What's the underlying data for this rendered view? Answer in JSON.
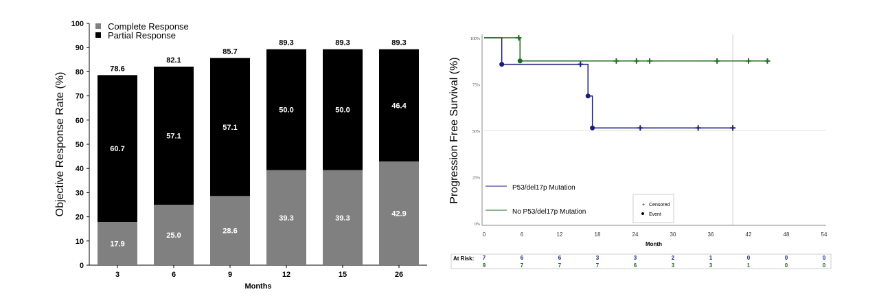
{
  "chart_data": [
    {
      "type": "bar",
      "stacked": true,
      "categories": [
        "3",
        "6",
        "9",
        "12",
        "15",
        "26"
      ],
      "series": [
        {
          "name": "Complete Response",
          "values": [
            17.9,
            25.0,
            28.6,
            39.3,
            39.3,
            42.9
          ],
          "color": "#808080"
        },
        {
          "name": "Partial Response",
          "values": [
            60.7,
            57.1,
            57.1,
            50.0,
            50.0,
            46.4
          ],
          "color": "#000000"
        }
      ],
      "totals": [
        78.6,
        82.1,
        85.7,
        89.3,
        89.3,
        89.3
      ],
      "xlabel": "Months",
      "ylabel": "Objective Response Rate (%)",
      "ylim": [
        0,
        100
      ],
      "yticks": [
        "0",
        "10",
        "20",
        "30",
        "40",
        "50",
        "60",
        "70",
        "80",
        "90",
        "100"
      ],
      "legend": "top-left"
    },
    {
      "type": "line",
      "subtype": "kaplan-meier",
      "xlabel": "Month",
      "ylabel": "Progression Free Survival (%)",
      "xlim": [
        0,
        54
      ],
      "xticks": [
        "0",
        "6",
        "12",
        "18",
        "24",
        "30",
        "36",
        "42",
        "48",
        "54"
      ],
      "ylim": [
        0,
        100
      ],
      "yticks": [
        "0%",
        "25%",
        "50%",
        "75%",
        "100%"
      ],
      "series": [
        {
          "name": "P53/del17p Mutation",
          "color": "#1a1a80",
          "steps": [
            [
              0,
              100
            ],
            [
              2.8,
              85.7
            ],
            [
              16.5,
              68.6
            ],
            [
              17.2,
              51.4
            ]
          ],
          "end": 39.5,
          "events": [
            [
              2.8,
              85.7
            ],
            [
              16.5,
              68.6
            ],
            [
              17.2,
              51.4
            ]
          ],
          "censored": [
            [
              15.3,
              85.7
            ],
            [
              24.8,
              51.4
            ],
            [
              34,
              51.4
            ],
            [
              39.5,
              51.4
            ]
          ],
          "at_risk": [
            "7",
            "6",
            "6",
            "3",
            "3",
            "2",
            "1",
            "0",
            "0",
            "0"
          ]
        },
        {
          "name": "No P53/del17p Mutation",
          "color": "#1a6b1a",
          "steps": [
            [
              0,
              100
            ],
            [
              5.7,
              87.5
            ]
          ],
          "end": 45,
          "events": [
            [
              5.7,
              87.5
            ]
          ],
          "censored": [
            [
              5.5,
              100
            ],
            [
              21,
              87.5
            ],
            [
              24.2,
              87.5
            ],
            [
              26.3,
              87.5
            ],
            [
              37,
              87.5
            ],
            [
              42,
              87.5
            ],
            [
              45,
              87.5
            ]
          ],
          "at_risk": [
            "9",
            "7",
            "7",
            "7",
            "6",
            "3",
            "3",
            "1",
            "0",
            "0"
          ]
        }
      ],
      "marker_legend": {
        "censored": "Censored",
        "event": "Event"
      },
      "at_risk_label": "At Risk:",
      "reference_line_x": 39.5
    }
  ]
}
